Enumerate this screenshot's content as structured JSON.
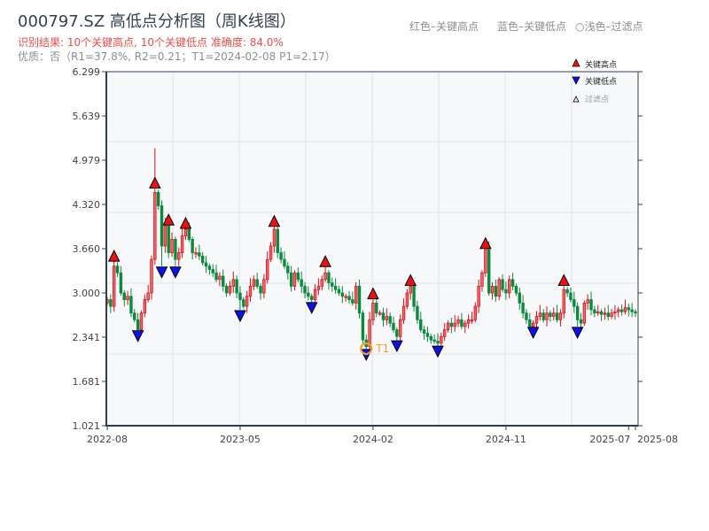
{
  "header": {
    "title": "000797.SZ 高低点分析图（周K线图）",
    "result": "识别结果: 10个关键高点, 10个关键低点   准确度: 84.0%",
    "quality": "优质：否（R1=37.8%, R2=0.21；T1=2024-02-08 P1=2.17）",
    "legend_red": "红色–关键高点",
    "legend_blue": "蓝色–关键低点",
    "legend_light": "○浅色–过滤点"
  },
  "chart_data": {
    "type": "candlestick",
    "title": "000797.SZ 高低点分析图（周K线图）",
    "xlabel": "",
    "ylabel": "",
    "ylim": [
      1.021,
      6.299
    ],
    "y_ticks": [
      "1.021",
      "1.681",
      "2.341",
      "3.000",
      "3.660",
      "4.320",
      "4.979",
      "5.639",
      "6.299"
    ],
    "x_ticks": [
      {
        "index": 0,
        "label": "2022-08"
      },
      {
        "index": 39,
        "label": "2023-05"
      },
      {
        "index": 78,
        "label": "2024-02"
      },
      {
        "index": 117,
        "label": "2024-11"
      },
      {
        "index": 153,
        "label": "2025-07"
      },
      {
        "index": 155,
        "label": "2025-08"
      }
    ],
    "grid": true,
    "legend": {
      "position": "top-right",
      "entries": [
        "关键高点",
        "关键低点",
        "过滤点"
      ]
    },
    "first_open": 2.85,
    "close": [
      2.9,
      2.8,
      3.4,
      3.3,
      3.0,
      2.9,
      2.95,
      2.7,
      2.6,
      2.45,
      2.7,
      2.9,
      3.0,
      3.5,
      4.5,
      4.3,
      3.7,
      4.0,
      3.6,
      3.8,
      3.5,
      3.6,
      3.85,
      3.95,
      3.8,
      3.6,
      3.6,
      3.55,
      3.45,
      3.4,
      3.35,
      3.3,
      3.2,
      3.25,
      3.1,
      3.0,
      3.1,
      3.2,
      3.0,
      2.9,
      2.8,
      2.95,
      3.1,
      3.2,
      3.1,
      3.0,
      3.2,
      3.5,
      3.7,
      3.95,
      3.6,
      3.5,
      3.4,
      3.3,
      3.1,
      3.3,
      3.2,
      3.1,
      3.0,
      2.95,
      2.9,
      3.05,
      3.1,
      3.2,
      3.3,
      3.15,
      3.1,
      3.05,
      3.0,
      2.95,
      2.95,
      2.9,
      2.85,
      3.1,
      2.7,
      2.3,
      2.2,
      2.6,
      2.85,
      2.7,
      2.7,
      2.6,
      2.65,
      2.55,
      2.45,
      2.35,
      2.6,
      2.8,
      3.0,
      3.1,
      2.8,
      2.6,
      2.45,
      2.4,
      2.35,
      2.3,
      2.28,
      2.25,
      2.35,
      2.45,
      2.55,
      2.5,
      2.55,
      2.6,
      2.5,
      2.55,
      2.6,
      2.6,
      2.8,
      3.1,
      3.3,
      3.65,
      3.0,
      3.1,
      2.95,
      3.2,
      3.05,
      3.0,
      3.2,
      3.1,
      3.0,
      2.85,
      2.7,
      2.6,
      2.5,
      2.55,
      2.65,
      2.7,
      2.6,
      2.7,
      2.65,
      2.7,
      2.6,
      2.7,
      3.05,
      3.0,
      2.9,
      2.8,
      2.6,
      2.55,
      2.85,
      2.9,
      2.75,
      2.7,
      2.72,
      2.68,
      2.7,
      2.65,
      2.7,
      2.72,
      2.75,
      2.72,
      2.78,
      2.75,
      2.72,
      2.7
    ],
    "high_overrides": {
      "14": 5.16
    },
    "key_highs": [
      [
        2,
        3.46
      ],
      [
        14,
        4.55
      ],
      [
        18,
        4.0
      ],
      [
        23,
        3.95
      ],
      [
        49,
        3.98
      ],
      [
        64,
        3.38
      ],
      [
        78,
        2.9
      ],
      [
        89,
        3.1
      ],
      [
        111,
        3.65
      ],
      [
        134,
        3.1
      ]
    ],
    "key_lows": [
      [
        9,
        2.45
      ],
      [
        16,
        3.4
      ],
      [
        20,
        3.4
      ],
      [
        39,
        2.75
      ],
      [
        60,
        2.87
      ],
      [
        76,
        2.17
      ],
      [
        85,
        2.3
      ],
      [
        97,
        2.22
      ],
      [
        125,
        2.5
      ],
      [
        138,
        2.5
      ]
    ],
    "annotation": {
      "index": 76,
      "price": 2.17,
      "label": "T1"
    }
  },
  "colors": {
    "up": "#d9121c",
    "up_fill": "#ee6a6a",
    "down": "#0c8a3c",
    "high_marker": "#ee1111",
    "low_marker": "#1010ee",
    "t1": "#f0a020",
    "axis": "#2e3e50",
    "grid": "#dfe3ea",
    "plot_bg": "#f6f8fa"
  }
}
